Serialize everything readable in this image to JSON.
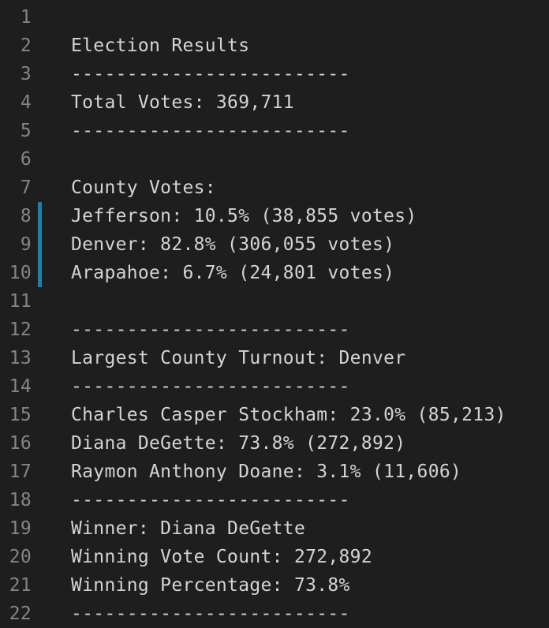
{
  "editor": {
    "colors": {
      "background": "#1e1e1e",
      "text": "#d4d4d4",
      "line_number": "#858585",
      "modified_gutter_bar": "#1b81a8"
    },
    "lines": [
      {
        "number": "1",
        "text": "",
        "modified": false
      },
      {
        "number": "2",
        "text": "Election Results",
        "modified": false
      },
      {
        "number": "3",
        "text": "-------------------------",
        "modified": false
      },
      {
        "number": "4",
        "text": "Total Votes: 369,711",
        "modified": false
      },
      {
        "number": "5",
        "text": "-------------------------",
        "modified": false
      },
      {
        "number": "6",
        "text": "",
        "modified": false
      },
      {
        "number": "7",
        "text": "County Votes:",
        "modified": false
      },
      {
        "number": "8",
        "text": "Jefferson: 10.5% (38,855 votes)",
        "modified": true
      },
      {
        "number": "9",
        "text": "Denver: 82.8% (306,055 votes)",
        "modified": true
      },
      {
        "number": "10",
        "text": "Arapahoe: 6.7% (24,801 votes)",
        "modified": true
      },
      {
        "number": "11",
        "text": "",
        "modified": false
      },
      {
        "number": "12",
        "text": "-------------------------",
        "modified": false
      },
      {
        "number": "13",
        "text": "Largest County Turnout: Denver",
        "modified": false
      },
      {
        "number": "14",
        "text": "-------------------------",
        "modified": false
      },
      {
        "number": "15",
        "text": "Charles Casper Stockham: 23.0% (85,213)",
        "modified": false
      },
      {
        "number": "16",
        "text": "Diana DeGette: 73.8% (272,892)",
        "modified": false
      },
      {
        "number": "17",
        "text": "Raymon Anthony Doane: 3.1% (11,606)",
        "modified": false
      },
      {
        "number": "18",
        "text": "-------------------------",
        "modified": false
      },
      {
        "number": "19",
        "text": "Winner: Diana DeGette",
        "modified": false
      },
      {
        "number": "20",
        "text": "Winning Vote Count: 272,892",
        "modified": false
      },
      {
        "number": "21",
        "text": "Winning Percentage: 73.8%",
        "modified": false
      },
      {
        "number": "22",
        "text": "-------------------------",
        "modified": false
      }
    ]
  }
}
